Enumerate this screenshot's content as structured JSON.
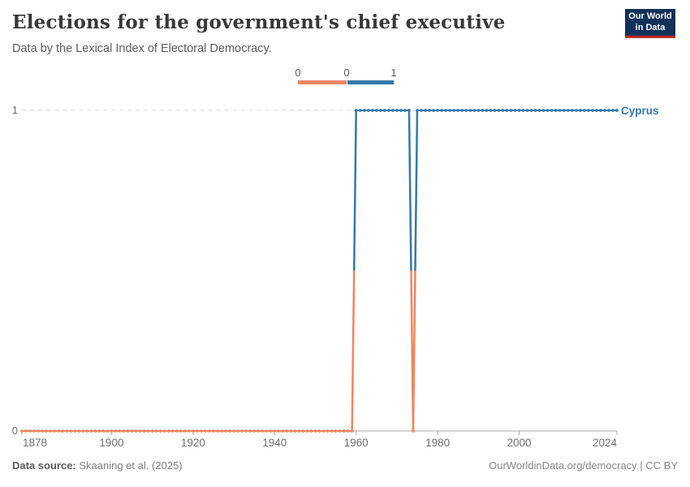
{
  "header": {
    "title": "Elections for the government's chief executive",
    "subtitle": "Data by the Lexical Index of Electoral Democracy.",
    "logo": {
      "line1": "Our World",
      "line2": "in Data"
    }
  },
  "legend": {
    "tick_labels": [
      "0",
      "0",
      "1"
    ]
  },
  "chart_data": {
    "type": "line",
    "title": "Elections for the government's chief executive",
    "entity_label": "Cyprus",
    "xlabel": "",
    "ylabel": "",
    "xlim": [
      1878,
      2024
    ],
    "ylim": [
      0,
      1
    ],
    "x_ticks": [
      1878,
      1900,
      1920,
      1940,
      1960,
      1980,
      2000,
      2024
    ],
    "y_ticks": [
      0,
      1
    ],
    "grid": "dashed horizontal gridline at y=1 only",
    "legend_position": "top-center",
    "colors": {
      "0": "#EE8663",
      "1": "#3578AC"
    },
    "series": [
      {
        "name": "Cyprus",
        "segments": [
          {
            "from": 1878,
            "to": 1959,
            "value": 0
          },
          {
            "from": 1960,
            "to": 1973,
            "value": 1
          },
          {
            "from": 1974,
            "to": 1974,
            "value": 0
          },
          {
            "from": 1975,
            "to": 2024,
            "value": 1
          }
        ]
      }
    ]
  },
  "footer": {
    "source_label": "Data source:",
    "source_value": " Skaaning et al. (2025)",
    "attribution": "OurWorldinData.org/democracy | CC BY"
  }
}
